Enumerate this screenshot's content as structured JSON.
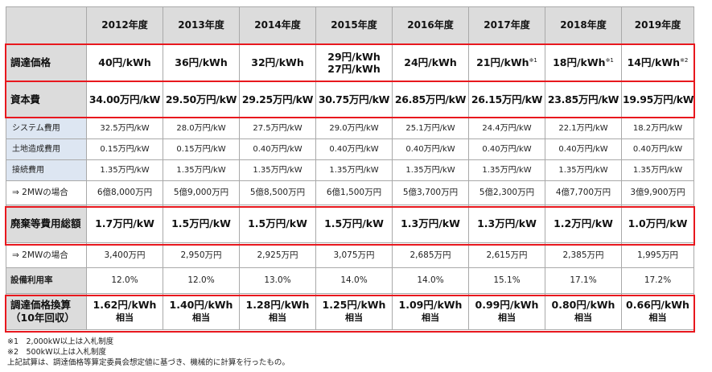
{
  "years": [
    "2012年度",
    "2013年度",
    "2014年度",
    "2015年度",
    "2016年度",
    "2017年度",
    "2018年度",
    "2019年度"
  ],
  "rows": {
    "price": {
      "label": "調達価格",
      "values": [
        {
          "main": "40円/kWh",
          "sup": "",
          "line2": ""
        },
        {
          "main": "36円/kWh",
          "sup": "",
          "line2": ""
        },
        {
          "main": "32円/kWh",
          "sup": "",
          "line2": ""
        },
        {
          "main": "29円/kWh",
          "sup": "",
          "line2": "27円/kWh"
        },
        {
          "main": "24円/kWh",
          "sup": "",
          "line2": ""
        },
        {
          "main": "21円/kWh",
          "sup": "※1",
          "line2": ""
        },
        {
          "main": "18円/kWh",
          "sup": "※1",
          "line2": ""
        },
        {
          "main": "14円/kWh",
          "sup": "※2",
          "line2": ""
        }
      ]
    },
    "capital": {
      "label": "資本費",
      "values": [
        "34.00万円/kW",
        "29.50万円/kW",
        "29.25万円/kW",
        "30.75万円/kW",
        "26.85万円/kW",
        "26.15万円/kW",
        "23.85万円/kW",
        "19.95万円/kW"
      ]
    },
    "system": {
      "label": "システム費用",
      "values": [
        "32.5万円/kW",
        "28.0万円/kW",
        "27.5万円/kW",
        "29.0万円/kW",
        "25.1万円/kW",
        "24.4万円/kW",
        "22.1万円/kW",
        "18.2万円/kW"
      ]
    },
    "land": {
      "label": "土地造成費用",
      "values": [
        "0.15万円/kW",
        "0.15万円/kW",
        "0.40万円/kW",
        "0.40万円/kW",
        "0.40万円/kW",
        "0.40万円/kW",
        "0.40万円/kW",
        "0.40万円/kW"
      ]
    },
    "connect": {
      "label": "接続費用",
      "values": [
        "1.35万円/kW",
        "1.35万円/kW",
        "1.35万円/kW",
        "1.35万円/kW",
        "1.35万円/kW",
        "1.35万円/kW",
        "1.35万円/kW",
        "1.35万円/kW"
      ]
    },
    "mw2_capital": {
      "label": "⇒ 2MWの場合",
      "values": [
        "6億8,000万円",
        "5億9,000万円",
        "5億8,500万円",
        "6億1,500万円",
        "5億3,700万円",
        "5億2,300万円",
        "4億7,700万円",
        "3億9,900万円"
      ]
    },
    "disposal": {
      "label": "廃棄等費用総額",
      "values": [
        "1.7万円/kW",
        "1.5万円/kW",
        "1.5万円/kW",
        "1.5万円/kW",
        "1.3万円/kW",
        "1.3万円/kW",
        "1.2万円/kW",
        "1.0万円/kW"
      ]
    },
    "mw2_disposal": {
      "label": "⇒ 2MWの場合",
      "values": [
        "3,400万円",
        "2,950万円",
        "2,925万円",
        "3,075万円",
        "2,685万円",
        "2,615万円",
        "2,385万円",
        "1,995万円"
      ]
    },
    "utilization": {
      "label": "設備利用率",
      "values": [
        "12.0%",
        "12.0%",
        "13.0%",
        "14.0%",
        "14.0%",
        "15.1%",
        "17.1%",
        "17.2%"
      ]
    },
    "conversion": {
      "label_line1": "調達価格換算",
      "label_line2": "（10年回収）",
      "suffix": "相当",
      "values": [
        "1.62円/kWh",
        "1.40円/kWh",
        "1.28円/kWh",
        "1.25円/kWh",
        "1.09円/kWh",
        "0.99円/kWh",
        "0.80円/kWh",
        "0.66円/kWh"
      ]
    }
  },
  "notes": [
    "※1　2,000kW以上は入札制度",
    "※2　500kW以上は入札制度",
    "上記試算は、調達価格等算定委員会想定値に基づき、機械的に計算を行ったもの。"
  ],
  "colors": {
    "highlight_border": "#e8181e",
    "header_bg": "#dcdcdc",
    "sub_bg": "#dde6f2",
    "grid_line": "#a9a9a9"
  }
}
